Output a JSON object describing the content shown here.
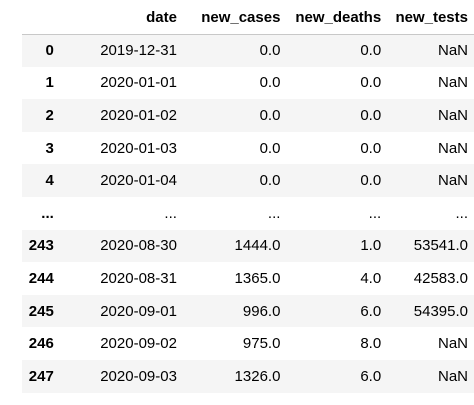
{
  "table": {
    "columns": [
      "",
      "date",
      "new_cases",
      "new_deaths",
      "new_tests"
    ],
    "rows": [
      {
        "index": "0",
        "date": "2019-12-31",
        "new_cases": "0.0",
        "new_deaths": "0.0",
        "new_tests": "NaN"
      },
      {
        "index": "1",
        "date": "2020-01-01",
        "new_cases": "0.0",
        "new_deaths": "0.0",
        "new_tests": "NaN"
      },
      {
        "index": "2",
        "date": "2020-01-02",
        "new_cases": "0.0",
        "new_deaths": "0.0",
        "new_tests": "NaN"
      },
      {
        "index": "3",
        "date": "2020-01-03",
        "new_cases": "0.0",
        "new_deaths": "0.0",
        "new_tests": "NaN"
      },
      {
        "index": "4",
        "date": "2020-01-04",
        "new_cases": "0.0",
        "new_deaths": "0.0",
        "new_tests": "NaN"
      },
      {
        "index": "...",
        "date": "...",
        "new_cases": "...",
        "new_deaths": "...",
        "new_tests": "..."
      },
      {
        "index": "243",
        "date": "2020-08-30",
        "new_cases": "1444.0",
        "new_deaths": "1.0",
        "new_tests": "53541.0"
      },
      {
        "index": "244",
        "date": "2020-08-31",
        "new_cases": "1365.0",
        "new_deaths": "4.0",
        "new_tests": "42583.0"
      },
      {
        "index": "245",
        "date": "2020-09-01",
        "new_cases": "996.0",
        "new_deaths": "6.0",
        "new_tests": "54395.0"
      },
      {
        "index": "246",
        "date": "2020-09-02",
        "new_cases": "975.0",
        "new_deaths": "8.0",
        "new_tests": "NaN"
      },
      {
        "index": "247",
        "date": "2020-09-03",
        "new_cases": "1326.0",
        "new_deaths": "6.0",
        "new_tests": "NaN"
      }
    ]
  }
}
